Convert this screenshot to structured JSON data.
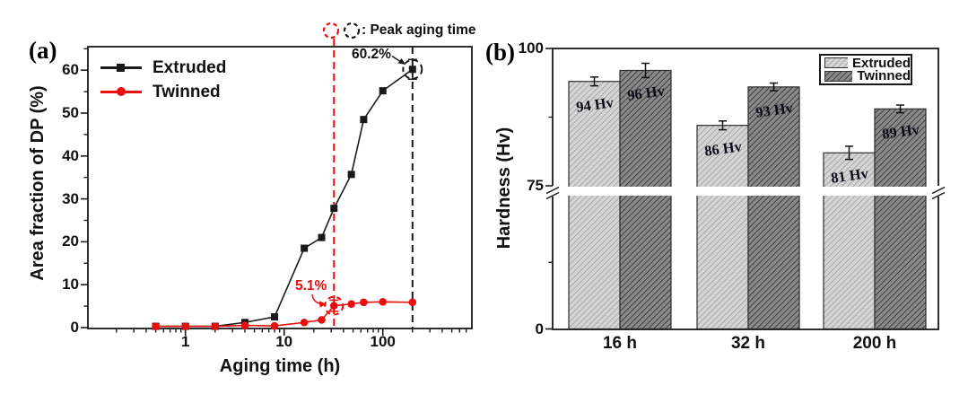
{
  "figure": {
    "background": "#ffffff",
    "panels": {
      "a": {
        "label": "(a)"
      },
      "b": {
        "label": "(b)"
      }
    }
  },
  "colors": {
    "extruded_line": "#1a1a1a",
    "twinned_line": "#ea0d0d",
    "bar_extruded_bg": "#d5d5d5",
    "bar_extruded_hatch": "#8f8f8f",
    "bar_twinned_bg": "#898989",
    "bar_twinned_hatch": "#1f1f1f"
  },
  "chart_data": [
    {
      "panel": "a",
      "type": "line",
      "xlabel": "Aging time (h)",
      "ylabel": "Area fraction of DP (%)",
      "x_scale": "log",
      "xlim": [
        0.1,
        800
      ],
      "ylim": [
        0,
        65
      ],
      "x_ticks": [
        1,
        10,
        100
      ],
      "y_ticks": [
        0,
        10,
        20,
        30,
        40,
        50,
        60
      ],
      "legend_position": "top-left",
      "series": [
        {
          "name": "Extruded",
          "marker": "square",
          "color": "#1a1a1a",
          "x": [
            0.5,
            1,
            2,
            4,
            8,
            16,
            24,
            32,
            48,
            64,
            100,
            200
          ],
          "y": [
            0.3,
            0.3,
            0.3,
            1.2,
            2.5,
            18.5,
            21.0,
            27.8,
            35.7,
            48.5,
            55.2,
            60.2
          ]
        },
        {
          "name": "Twinned",
          "marker": "circle",
          "color": "#ea0d0d",
          "x": [
            0.5,
            1,
            2,
            4,
            8,
            16,
            24,
            32,
            48,
            64,
            100,
            200
          ],
          "y": [
            0.3,
            0.3,
            0.3,
            0.5,
            0.4,
            1.2,
            1.8,
            5.1,
            5.5,
            5.9,
            6.0,
            5.9
          ]
        }
      ],
      "error_points": [
        {
          "series": 0,
          "x": 200,
          "y": 60.2,
          "err": 2.3
        },
        {
          "series": 1,
          "x": 32,
          "y": 5.1,
          "err": 1.3
        }
      ],
      "peak_lines": [
        {
          "x": 32,
          "color": "#ea0d0d"
        },
        {
          "x": 200,
          "color": "#1a1a1a"
        }
      ],
      "annotations": {
        "extruded_peak_label": "60.2%",
        "twinned_peak_label": "5.1%",
        "peak_note": ": Peak aging time"
      }
    },
    {
      "panel": "b",
      "type": "bar",
      "ylabel": "Hardness (Hv)",
      "categories": [
        "16 h",
        "32 h",
        "200 h"
      ],
      "ylim": [
        0,
        100
      ],
      "y_ticks": [
        0,
        75,
        100
      ],
      "axis_break": {
        "between": [
          0,
          75
        ],
        "shown_range": [
          75,
          100
        ]
      },
      "legend_position": "top-right",
      "series": [
        {
          "name": "Extruded",
          "values": [
            94,
            86,
            81
          ],
          "errors": [
            0.8,
            0.8,
            1.2
          ],
          "value_labels": [
            "94 Hv",
            "86 Hv",
            "81 Hv"
          ]
        },
        {
          "name": "Twinned",
          "values": [
            96,
            93,
            89
          ],
          "errors": [
            1.3,
            0.7,
            0.7
          ],
          "value_labels": [
            "96 Hv",
            "93 Hv",
            "89 Hv"
          ]
        }
      ]
    }
  ]
}
